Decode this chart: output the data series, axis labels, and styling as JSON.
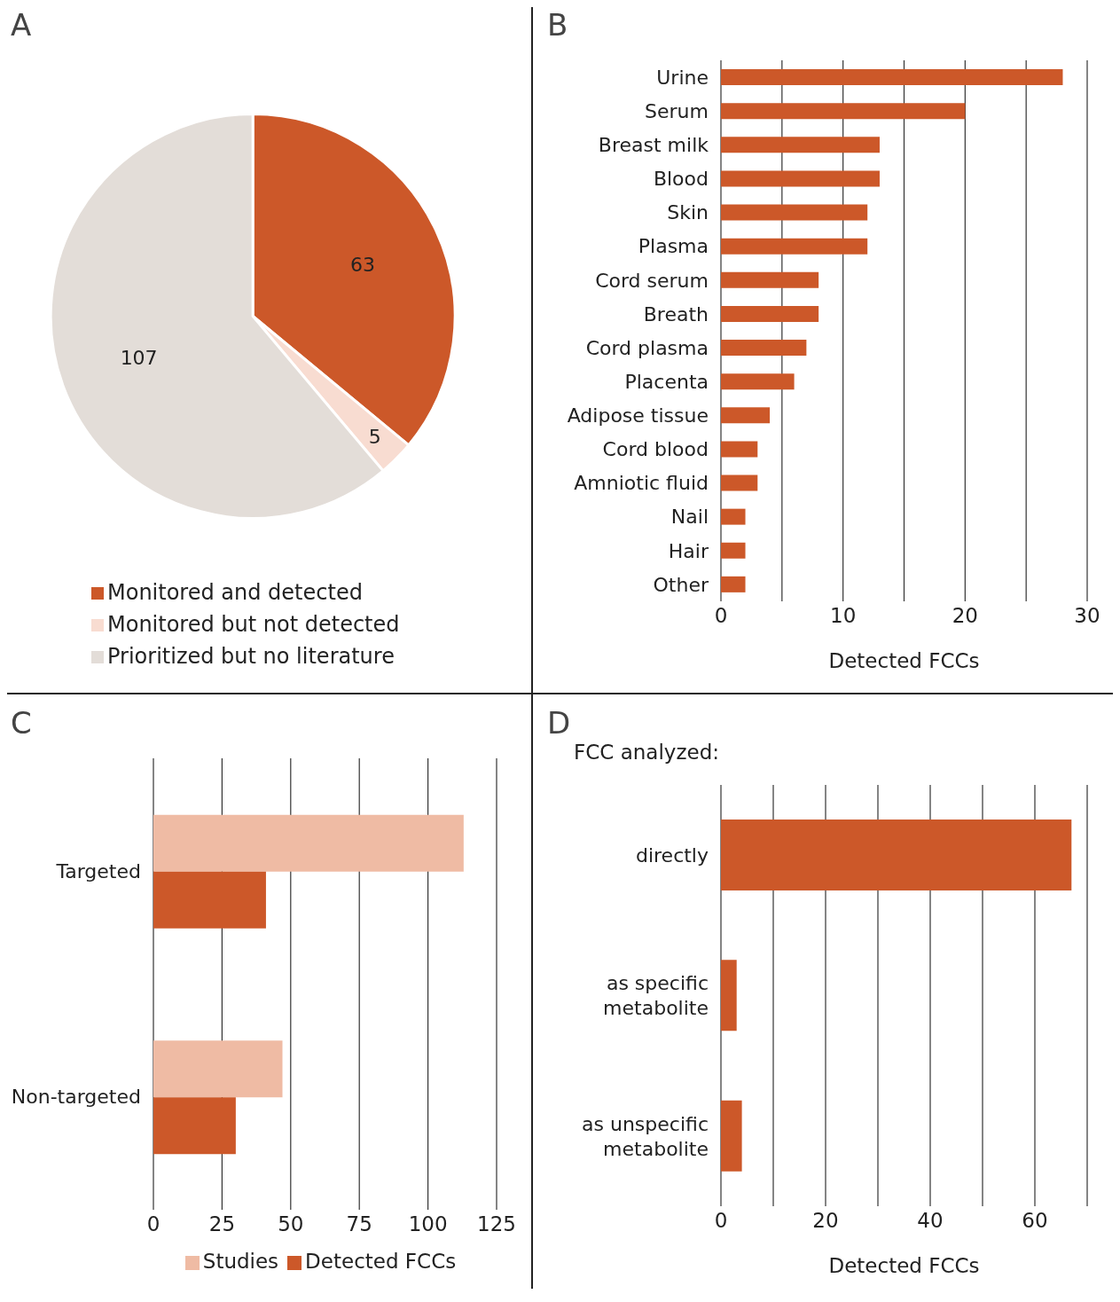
{
  "chart_data": [
    {
      "type": "pie",
      "title": "A",
      "categories": [
        "Monitored and detected",
        "Monitored but not detected",
        "Prioritized but no literature"
      ],
      "values": [
        63,
        5,
        107
      ],
      "colors": [
        "#cc5829",
        "#f8dcd1",
        "#e3ddd8"
      ],
      "data_labels": true,
      "legend": "bottom"
    },
    {
      "type": "bar",
      "title": "B",
      "orientation": "horizontal",
      "categories": [
        "Urine",
        "Serum",
        "Breast milk",
        "Blood",
        "Skin",
        "Plasma",
        "Cord serum",
        "Breath",
        "Cord plasma",
        "Placenta",
        "Adipose tissue",
        "Cord blood",
        "Amniotic fluid",
        "Nail",
        "Hair",
        "Other"
      ],
      "values": [
        28,
        20,
        13,
        13,
        12,
        12,
        8,
        8,
        7,
        6,
        4,
        3,
        3,
        2,
        2,
        2
      ],
      "color": "#cc5829",
      "xlim": [
        0,
        30
      ],
      "xticks": [
        0,
        {
          "value": 5,
          "label": null
        },
        10,
        {
          "value": 15,
          "label": null
        },
        20,
        {
          "value": 25,
          "label": null
        },
        30
      ],
      "xlabel": "Detected FCCs",
      "grid": "x"
    },
    {
      "type": "bar",
      "title": "C",
      "orientation": "horizontal",
      "categories": [
        "Targeted",
        "Non-targeted"
      ],
      "series": [
        {
          "name": "Studies",
          "color": "#efbba4",
          "values": [
            113,
            47
          ]
        },
        {
          "name": "Detected FCCs",
          "color": "#cc5829",
          "values": [
            41,
            30
          ]
        }
      ],
      "xlim": [
        0,
        125
      ],
      "xticks": [
        0,
        25,
        50,
        75,
        100,
        125
      ],
      "grid": "x",
      "legend": "bottom"
    },
    {
      "type": "bar",
      "title": "D",
      "orientation": "horizontal",
      "categories": [
        "directly",
        "as specific metabolite",
        "as unspecific metabolite"
      ],
      "values": [
        67,
        3,
        4
      ],
      "color": "#cc5829",
      "xlim": [
        0,
        70
      ],
      "xticks": [
        0,
        {
          "value": 10,
          "label": null
        },
        20,
        {
          "value": 30,
          "label": null
        },
        40,
        {
          "value": 50,
          "label": null
        },
        60,
        {
          "value": 70,
          "label": null
        }
      ],
      "xlabel": "Detected FCCs",
      "grid": "x",
      "annotations": [
        "FCC analyzed:"
      ]
    }
  ]
}
